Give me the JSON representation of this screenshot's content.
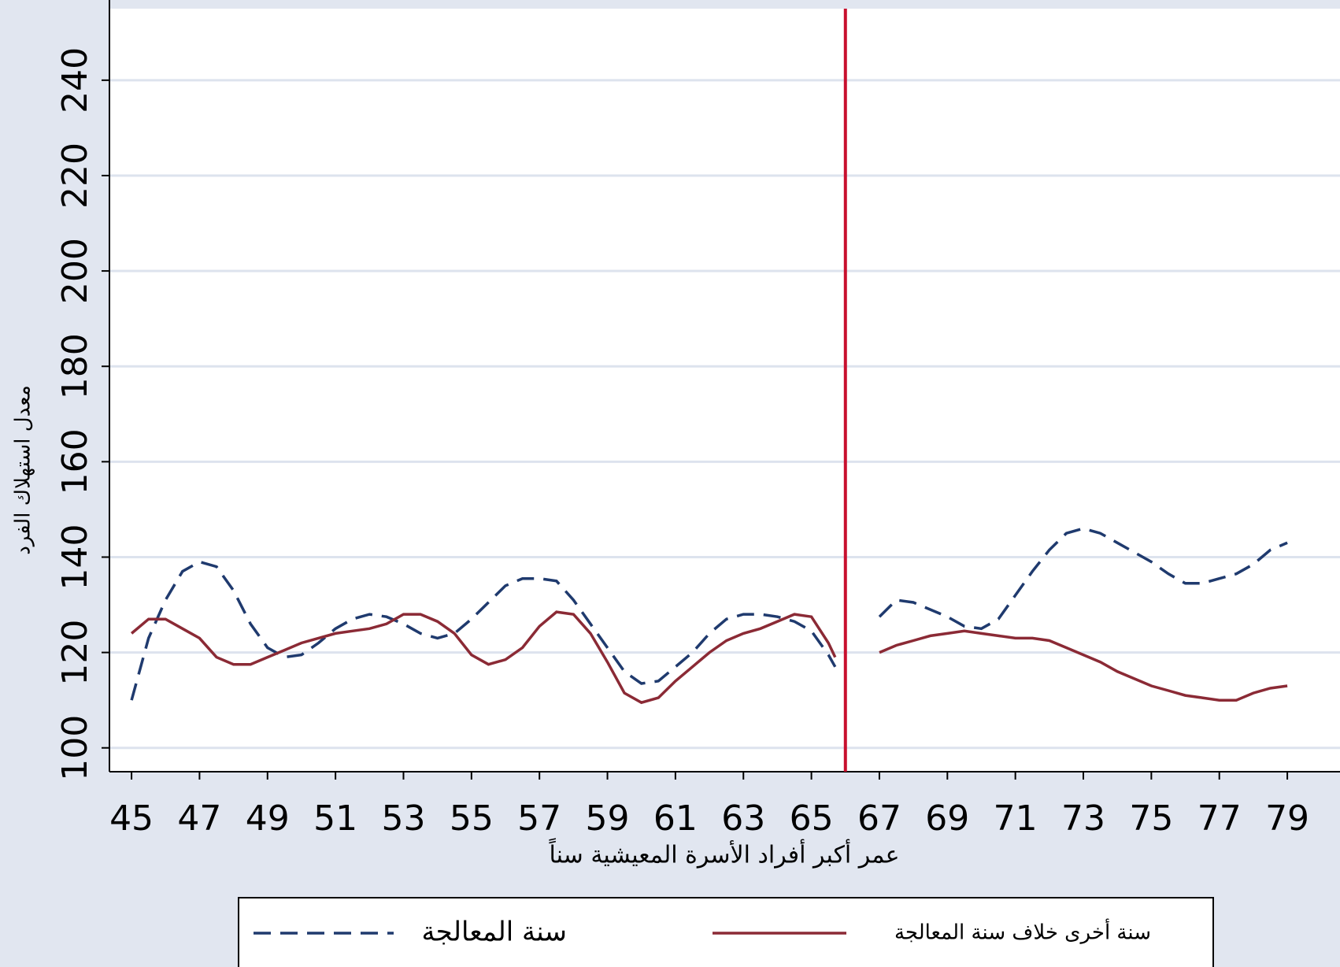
{
  "chart_data": {
    "type": "line",
    "y_label": "معدل استهلاك الفرد",
    "x_label": "عمر أكبر أفراد الأسرة المعيشية سناً",
    "x": [
      45,
      45.5,
      46,
      46.5,
      47,
      47.5,
      48,
      48.5,
      49,
      49.5,
      50,
      50.5,
      51,
      51.5,
      52,
      52.5,
      53,
      53.5,
      54,
      54.5,
      55,
      55.5,
      56,
      56.5,
      57,
      57.5,
      58,
      58.5,
      59,
      59.5,
      60,
      60.5,
      61,
      61.5,
      62,
      62.5,
      63,
      63.5,
      64,
      64.5,
      65,
      65.5,
      65.7,
      66.5,
      67,
      67.5,
      68,
      68.5,
      69,
      69.5,
      70,
      70.5,
      71,
      71.5,
      72,
      72.5,
      73,
      73.5,
      74,
      74.5,
      75,
      75.5,
      76,
      76.5,
      77,
      77.5,
      78,
      78.5,
      79
    ],
    "series": [
      {
        "name": "سنة المعالجة",
        "color": "#1f3a6e",
        "dash": true,
        "values": [
          110,
          123,
          131,
          137,
          139,
          138,
          133,
          126,
          121,
          119,
          119.5,
          122,
          125,
          127,
          128,
          127.5,
          126,
          124,
          123,
          124,
          127,
          130.5,
          134,
          135.5,
          135.5,
          135,
          131,
          126,
          121,
          116,
          113.5,
          114,
          117,
          120,
          124,
          127,
          128,
          128,
          127.5,
          126.5,
          124.5,
          119.5,
          117,
          null,
          127.5,
          131,
          130.5,
          129,
          127.5,
          125.5,
          125,
          127,
          132,
          137,
          141.5,
          145,
          146,
          145,
          143,
          141,
          139,
          136.5,
          134.5,
          134.5,
          135.5,
          136.5,
          138.5,
          141.5,
          143
        ]
      },
      {
        "name": "سنة أخرى خلاف سنة المعالجة",
        "color": "#8b2a35",
        "dash": false,
        "values": [
          124,
          127,
          127,
          125,
          123,
          119,
          117.5,
          117.5,
          119,
          120.5,
          122,
          123,
          124,
          124.5,
          125,
          126,
          128,
          128,
          126.5,
          124,
          119.5,
          117.5,
          118.5,
          121,
          125.5,
          128.5,
          128,
          124,
          118,
          111.5,
          109.5,
          110.5,
          114,
          117,
          120,
          122.5,
          124,
          125,
          126.5,
          128,
          127.5,
          122,
          119,
          null,
          120,
          121.5,
          122.5,
          123.5,
          124,
          124.5,
          124,
          123.5,
          123,
          123,
          122.5,
          121,
          119.5,
          118,
          116,
          114.5,
          113,
          112,
          111,
          110.5,
          110,
          110,
          111.5,
          112.5,
          113
        ]
      }
    ],
    "vline": 66,
    "vline_color": "#c8102e",
    "xlim": [
      44.35,
      80.55
    ],
    "ylim": [
      95,
      255
    ],
    "xticks": [
      45,
      47,
      49,
      51,
      53,
      55,
      57,
      59,
      61,
      63,
      65,
      67,
      69,
      71,
      73,
      75,
      77,
      79
    ],
    "yticks": [
      100,
      120,
      140,
      160,
      180,
      200,
      220,
      240
    ],
    "grid": true
  }
}
